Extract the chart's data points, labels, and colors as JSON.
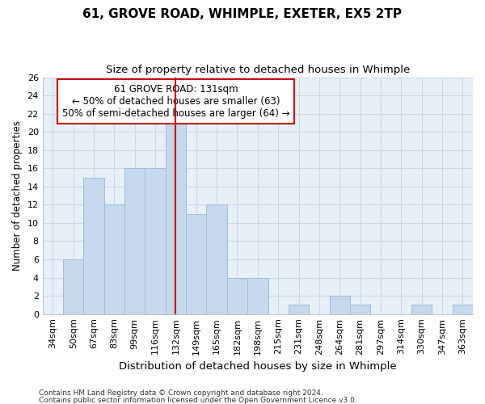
{
  "title": "61, GROVE ROAD, WHIMPLE, EXETER, EX5 2TP",
  "subtitle": "Size of property relative to detached houses in Whimple",
  "xlabel": "Distribution of detached houses by size in Whimple",
  "ylabel": "Number of detached properties",
  "footnote1": "Contains HM Land Registry data © Crown copyright and database right 2024.",
  "footnote2": "Contains public sector information licensed under the Open Government Licence v3.0.",
  "categories": [
    "34sqm",
    "50sqm",
    "67sqm",
    "83sqm",
    "99sqm",
    "116sqm",
    "132sqm",
    "149sqm",
    "165sqm",
    "182sqm",
    "198sqm",
    "215sqm",
    "231sqm",
    "248sqm",
    "264sqm",
    "281sqm",
    "297sqm",
    "314sqm",
    "330sqm",
    "347sqm",
    "363sqm"
  ],
  "values": [
    0,
    6,
    15,
    12,
    16,
    16,
    22,
    11,
    12,
    4,
    4,
    0,
    1,
    0,
    2,
    1,
    0,
    0,
    1,
    0,
    1
  ],
  "bar_color": "#c5d8ed",
  "bar_edge_color": "#9bbcda",
  "red_line_index": 6,
  "annotation_line1": "61 GROVE ROAD: 131sqm",
  "annotation_line2": "← 50% of detached houses are smaller (63)",
  "annotation_line3": "50% of semi-detached houses are larger (64) →",
  "annotation_box_color": "#ffffff",
  "annotation_box_edge_color": "#cc0000",
  "ylim": [
    0,
    26
  ],
  "yticks": [
    0,
    2,
    4,
    6,
    8,
    10,
    12,
    14,
    16,
    18,
    20,
    22,
    24,
    26
  ],
  "grid_color": "#c8d8e8",
  "background_color": "#e8f0f8",
  "fig_background": "#ffffff",
  "title_fontsize": 11,
  "subtitle_fontsize": 9.5,
  "tick_fontsize": 8,
  "ylabel_fontsize": 8.5,
  "xlabel_fontsize": 9.5,
  "annotation_fontsize": 8.5,
  "footnote_fontsize": 6.5
}
